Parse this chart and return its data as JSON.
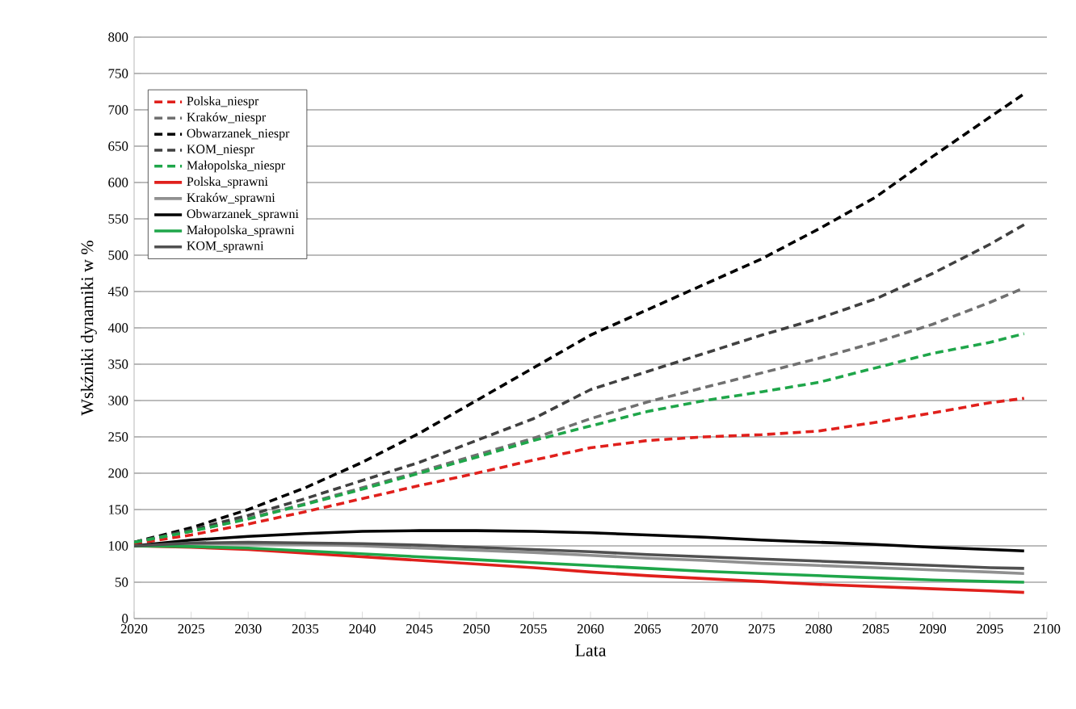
{
  "chart_data": {
    "type": "line",
    "xlabel": "Lata",
    "ylabel": "Wskźniki dynamiki w %",
    "x": [
      2020,
      2025,
      2030,
      2035,
      2040,
      2045,
      2050,
      2055,
      2060,
      2065,
      2070,
      2075,
      2080,
      2085,
      2090,
      2095,
      2098
    ],
    "xlim": [
      2020,
      2100
    ],
    "xticks": [
      2020,
      2025,
      2030,
      2035,
      2040,
      2045,
      2050,
      2055,
      2060,
      2065,
      2070,
      2075,
      2080,
      2085,
      2090,
      2095,
      2100
    ],
    "ylim": [
      0,
      800
    ],
    "yticks": [
      0,
      50,
      100,
      150,
      200,
      250,
      300,
      350,
      400,
      450,
      500,
      550,
      600,
      650,
      700,
      750,
      800
    ],
    "grid": "y",
    "legend": "top left",
    "marker": "none",
    "series": [
      {
        "name": "Polska_niespr",
        "color": "#e0201c",
        "line_style": "dashed",
        "values": [
          103,
          115,
          130,
          147,
          165,
          183,
          200,
          218,
          235,
          245,
          250,
          253,
          258,
          270,
          283,
          297,
          303
        ]
      },
      {
        "name": "Kraków_niespr",
        "color": "#707070",
        "line_style": "dashed",
        "values": [
          105,
          120,
          138,
          158,
          180,
          202,
          225,
          248,
          275,
          298,
          318,
          338,
          358,
          380,
          405,
          435,
          455
        ]
      },
      {
        "name": "Obwarzanek_niespr",
        "color": "#000000",
        "line_style": "dashed",
        "values": [
          105,
          125,
          150,
          180,
          215,
          255,
          300,
          345,
          390,
          425,
          460,
          495,
          536,
          580,
          636,
          690,
          722
        ]
      },
      {
        "name": "KOM_niespr",
        "color": "#404040",
        "line_style": "dashed",
        "values": [
          105,
          122,
          142,
          165,
          190,
          215,
          245,
          275,
          315,
          340,
          365,
          390,
          413,
          440,
          475,
          515,
          542
        ]
      },
      {
        "name": "Małopolska_niespr",
        "color": "#1fa64a",
        "line_style": "dashed",
        "values": [
          105,
          120,
          137,
          157,
          178,
          200,
          222,
          245,
          265,
          285,
          300,
          312,
          325,
          345,
          365,
          380,
          392
        ]
      },
      {
        "name": "Polska_sprawni",
        "color": "#e0201c",
        "line_style": "solid",
        "values": [
          100,
          98,
          95,
          90,
          85,
          80,
          75,
          70,
          64,
          59,
          55,
          51,
          47,
          44,
          41,
          38,
          36
        ]
      },
      {
        "name": "Kraków_sprawni",
        "color": "#909090",
        "line_style": "solid",
        "values": [
          100,
          103,
          103,
          102,
          100,
          97,
          94,
          91,
          87,
          83,
          80,
          76,
          73,
          70,
          67,
          64,
          62
        ]
      },
      {
        "name": "Obwarzanek_sprawni",
        "color": "#000000",
        "line_style": "solid",
        "values": [
          100,
          108,
          113,
          117,
          120,
          121,
          121,
          120,
          118,
          115,
          112,
          108,
          105,
          102,
          98,
          95,
          93
        ]
      },
      {
        "name": "Małopolska_sprawni",
        "color": "#1fa64a",
        "line_style": "solid",
        "values": [
          100,
          99,
          97,
          93,
          89,
          85,
          81,
          77,
          73,
          69,
          65,
          62,
          59,
          56,
          53,
          51,
          50
        ]
      },
      {
        "name": "KOM_sprawni",
        "color": "#505050",
        "line_style": "solid",
        "values": [
          100,
          104,
          105,
          104,
          103,
          101,
          98,
          95,
          92,
          88,
          85,
          82,
          79,
          76,
          73,
          70,
          69
        ]
      }
    ]
  }
}
